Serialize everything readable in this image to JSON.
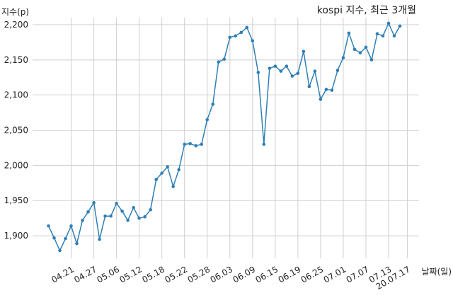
{
  "chart_data": {
    "type": "line",
    "title": "kospi 지수, 최근 3개월",
    "ylabel": "지수(p)",
    "xlabel": "날짜(일)",
    "ylim": [
      1868,
      2210
    ],
    "yticks": [
      1900,
      1950,
      2000,
      2050,
      2100,
      2150,
      2200
    ],
    "ytick_labels": [
      "1,900",
      "1,950",
      "2,000",
      "2,050",
      "2,100",
      "2,150",
      "2,200"
    ],
    "xtick_labels": [
      "04.21",
      "04.27",
      "05.06",
      "05.12",
      "05.18",
      "05.22",
      "05.28",
      "06.03",
      "06.09",
      "06.15",
      "06.19",
      "06.25",
      "07.01",
      "07.07",
      "07.13",
      "20.07.17"
    ],
    "xtick_positions": [
      4,
      8,
      12,
      16,
      20,
      24,
      28,
      32,
      36,
      40,
      44,
      48,
      52,
      56,
      60,
      63.3
    ],
    "grid": true,
    "color": "#2f7fb5",
    "series": [
      {
        "values": [
          1914,
          1897,
          1879,
          1896,
          1914,
          1889,
          1922,
          1934,
          1947,
          1895,
          1928,
          1928,
          1946,
          1935,
          1922,
          1940,
          1925,
          1927,
          1937,
          1980,
          1989,
          1998,
          1970,
          1994,
          2030,
          2031,
          2028,
          2030,
          2065,
          2087,
          2147,
          2151,
          2182,
          2184,
          2189,
          2196,
          2177,
          2132,
          2030,
          2138,
          2141,
          2134,
          2141,
          2127,
          2131,
          2162,
          2112,
          2134,
          2094,
          2108,
          2107,
          2135,
          2153,
          2188,
          2165,
          2160,
          2168,
          2150,
          2187,
          2184,
          2202,
          2184,
          2198
        ]
      }
    ]
  }
}
